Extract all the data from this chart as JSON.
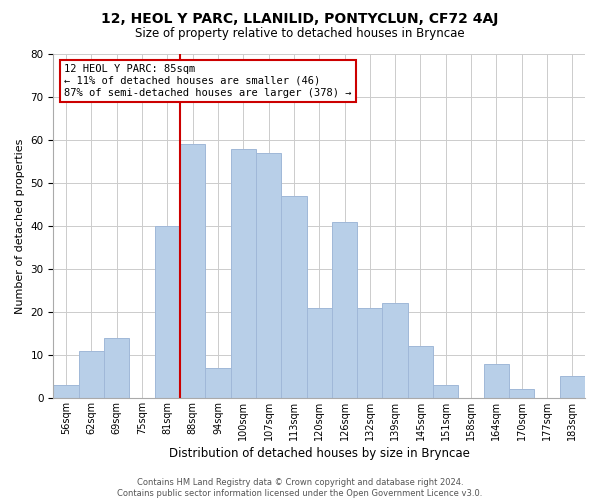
{
  "title": "12, HEOL Y PARC, LLANILID, PONTYCLUN, CF72 4AJ",
  "subtitle": "Size of property relative to detached houses in Bryncae",
  "xlabel": "Distribution of detached houses by size in Bryncae",
  "ylabel": "Number of detached properties",
  "bin_labels": [
    "56sqm",
    "62sqm",
    "69sqm",
    "75sqm",
    "81sqm",
    "88sqm",
    "94sqm",
    "100sqm",
    "107sqm",
    "113sqm",
    "120sqm",
    "126sqm",
    "132sqm",
    "139sqm",
    "145sqm",
    "151sqm",
    "158sqm",
    "164sqm",
    "170sqm",
    "177sqm",
    "183sqm"
  ],
  "bar_heights": [
    3,
    11,
    14,
    0,
    40,
    59,
    7,
    58,
    57,
    47,
    21,
    41,
    21,
    22,
    12,
    3,
    0,
    8,
    2,
    0,
    5
  ],
  "bar_color": "#b8cfe8",
  "bar_edgecolor": "#a0b8d8",
  "vline_x_index": 4.5,
  "vline_color": "#cc0000",
  "annotation_line1": "12 HEOL Y PARC: 85sqm",
  "annotation_line2": "← 11% of detached houses are smaller (46)",
  "annotation_line3": "87% of semi-detached houses are larger (378) →",
  "annotation_box_edgecolor": "#cc0000",
  "ylim": [
    0,
    80
  ],
  "yticks": [
    0,
    10,
    20,
    30,
    40,
    50,
    60,
    70,
    80
  ],
  "footer_line1": "Contains HM Land Registry data © Crown copyright and database right 2024.",
  "footer_line2": "Contains public sector information licensed under the Open Government Licence v3.0.",
  "bg_color": "#ffffff",
  "grid_color": "#cccccc",
  "title_fontsize": 10,
  "subtitle_fontsize": 8.5,
  "xlabel_fontsize": 8.5,
  "ylabel_fontsize": 8,
  "tick_fontsize": 7,
  "annotation_fontsize": 7.5,
  "footer_fontsize": 6
}
